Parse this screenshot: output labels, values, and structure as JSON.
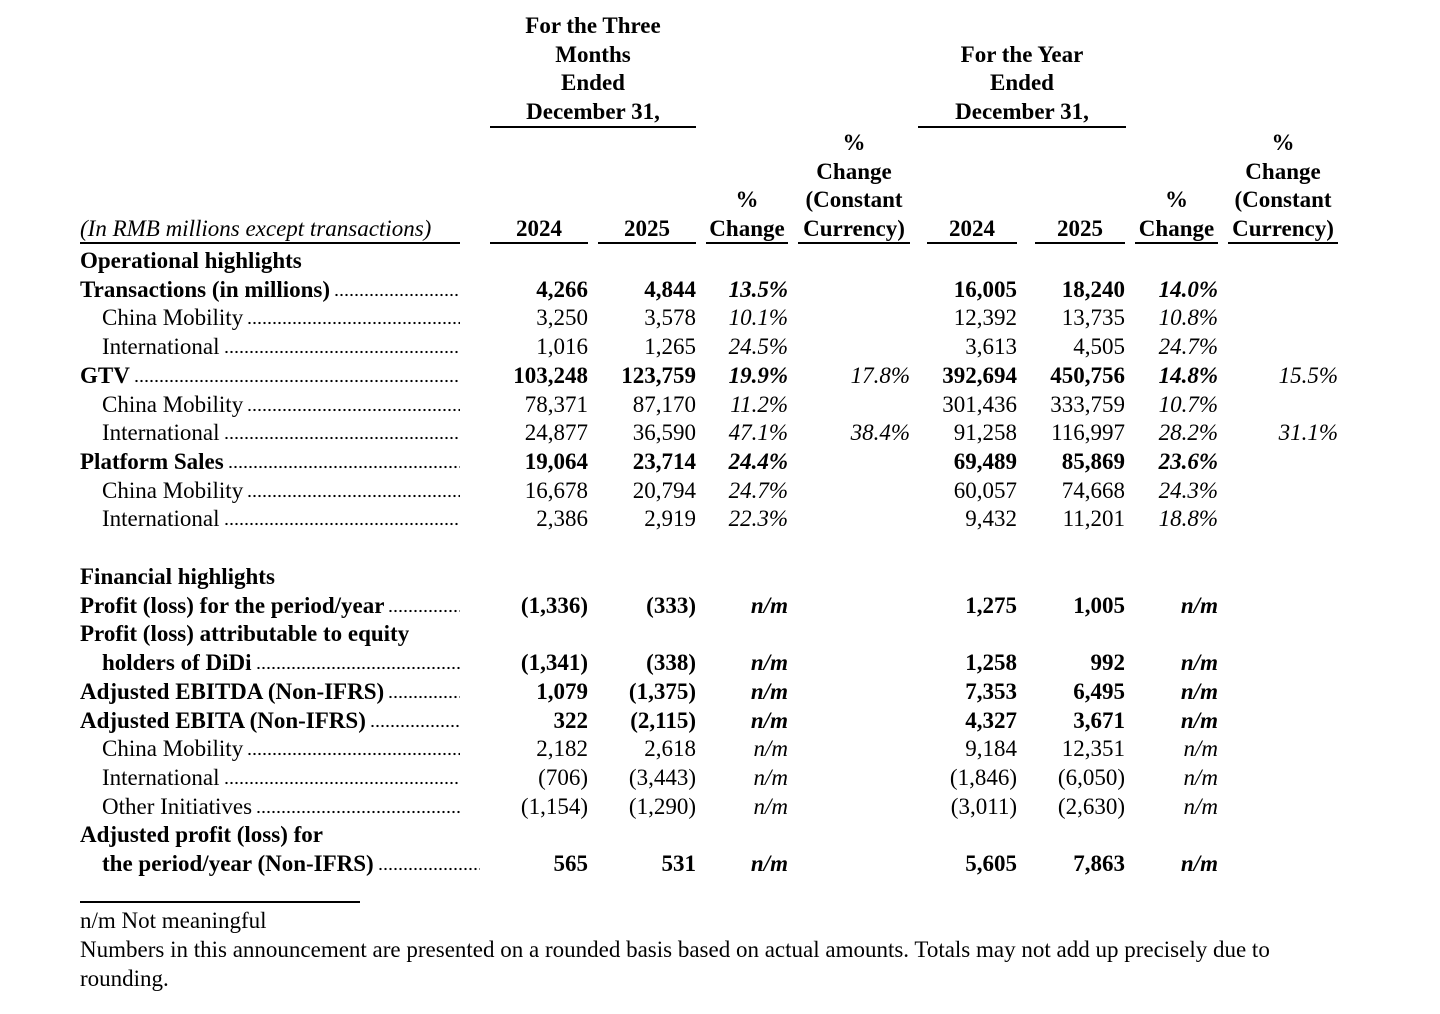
{
  "header": {
    "three_months": [
      "For the Three",
      "Months",
      "Ended",
      "December 31,"
    ],
    "year": [
      "For the Year",
      "Ended",
      "December 31,"
    ],
    "columns_label": "(In RMB millions except transactions)",
    "columns": [
      [
        "2024"
      ],
      [
        "2025"
      ],
      [
        "%",
        "Change"
      ],
      [
        "%",
        "Change",
        "(Constant",
        "Currency)"
      ],
      [
        "2024"
      ],
      [
        "2025"
      ],
      [
        "%",
        "Change"
      ],
      [
        "%",
        "Change",
        "(Constant",
        "Currency)"
      ]
    ]
  },
  "table": {
    "rows": [
      {
        "label": "Operational highlights",
        "bold": true
      },
      {
        "label": "Transactions (in millions)",
        "bold": true,
        "cells": [
          "4,266",
          "4,844",
          "13.5%",
          null,
          "16,005",
          "18,240",
          "14.0%",
          null
        ]
      },
      {
        "label": "China Mobility",
        "indent": true,
        "cells": [
          "3,250",
          "3,578",
          "10.1%",
          null,
          "12,392",
          "13,735",
          "10.8%",
          null
        ]
      },
      {
        "label": "International",
        "indent": true,
        "cells": [
          "1,016",
          "1,265",
          "24.5%",
          null,
          "3,613",
          "4,505",
          "24.7%",
          null
        ]
      },
      {
        "label": "GTV",
        "bold": true,
        "cells": [
          "103,248",
          "123,759",
          "19.9%",
          "17.8%",
          "392,694",
          "450,756",
          "14.8%",
          "15.5%"
        ]
      },
      {
        "label": "China Mobility",
        "indent": true,
        "cells": [
          "78,371",
          "87,170",
          "11.2%",
          null,
          "301,436",
          "333,759",
          "10.7%",
          null
        ]
      },
      {
        "label": "International",
        "indent": true,
        "cells": [
          "24,877",
          "36,590",
          "47.1%",
          "38.4%",
          "91,258",
          "116,997",
          "28.2%",
          "31.1%"
        ]
      },
      {
        "label": "Platform Sales",
        "bold": true,
        "cells": [
          "19,064",
          "23,714",
          "24.4%",
          null,
          "69,489",
          "85,869",
          "23.6%",
          null
        ]
      },
      {
        "label": "China Mobility",
        "indent": true,
        "cells": [
          "16,678",
          "20,794",
          "24.7%",
          null,
          "60,057",
          "74,668",
          "24.3%",
          null
        ]
      },
      {
        "label": "International",
        "indent": true,
        "cells": [
          "2,386",
          "2,919",
          "22.3%",
          null,
          "9,432",
          "11,201",
          "18.8%",
          null
        ]
      },
      {
        "label": "Financial highlights",
        "bold": true
      },
      {
        "label": "Profit (loss) for the period/year",
        "bold": true,
        "cells": [
          "(1,336)",
          "(333)",
          "n/m",
          null,
          "1,275",
          "1,005",
          "n/m",
          null
        ]
      },
      {
        "label": "Profit (loss) attributable to equity",
        "bold": true
      },
      {
        "label": "holders of DiDi",
        "bold": true,
        "indent": true,
        "cells": [
          "(1,341)",
          "(338)",
          "n/m",
          null,
          "1,258",
          "992",
          "n/m",
          null
        ]
      },
      {
        "label": "Adjusted EBITDA (Non-IFRS)",
        "bold": true,
        "cells": [
          "1,079",
          "(1,375)",
          "n/m",
          null,
          "7,353",
          "6,495",
          "n/m",
          null
        ]
      },
      {
        "label": "Adjusted EBITA (Non-IFRS)",
        "bold": true,
        "cells": [
          "322",
          "(2,115)",
          "n/m",
          null,
          "4,327",
          "3,671",
          "n/m",
          null
        ]
      },
      {
        "label": "China Mobility",
        "indent": true,
        "cells": [
          "2,182",
          "2,618",
          "n/m",
          null,
          "9,184",
          "12,351",
          "n/m",
          null
        ]
      },
      {
        "label": "International",
        "indent": true,
        "cells": [
          "(706)",
          "(3,443)",
          "n/m",
          null,
          "(1,846)",
          "(6,050)",
          "n/m",
          null
        ]
      },
      {
        "label": "Other Initiatives",
        "indent": true,
        "cells": [
          "(1,154)",
          "(1,290)",
          "n/m",
          null,
          "(3,011)",
          "(2,630)",
          "n/m",
          null
        ]
      },
      {
        "label": "Adjusted profit (loss) for",
        "bold": true
      },
      {
        "label": "the period/year (Non-IFRS)",
        "bold": true,
        "indent": true,
        "cells": [
          "565",
          "531",
          "n/m",
          null,
          "5,605",
          "7,863",
          "n/m",
          null
        ]
      }
    ]
  },
  "footnotes": [
    "n/m Not meaningful",
    "Numbers in this announcement are presented on a rounded basis based on actual amounts. Totals may not add up precisely due to rounding."
  ]
}
